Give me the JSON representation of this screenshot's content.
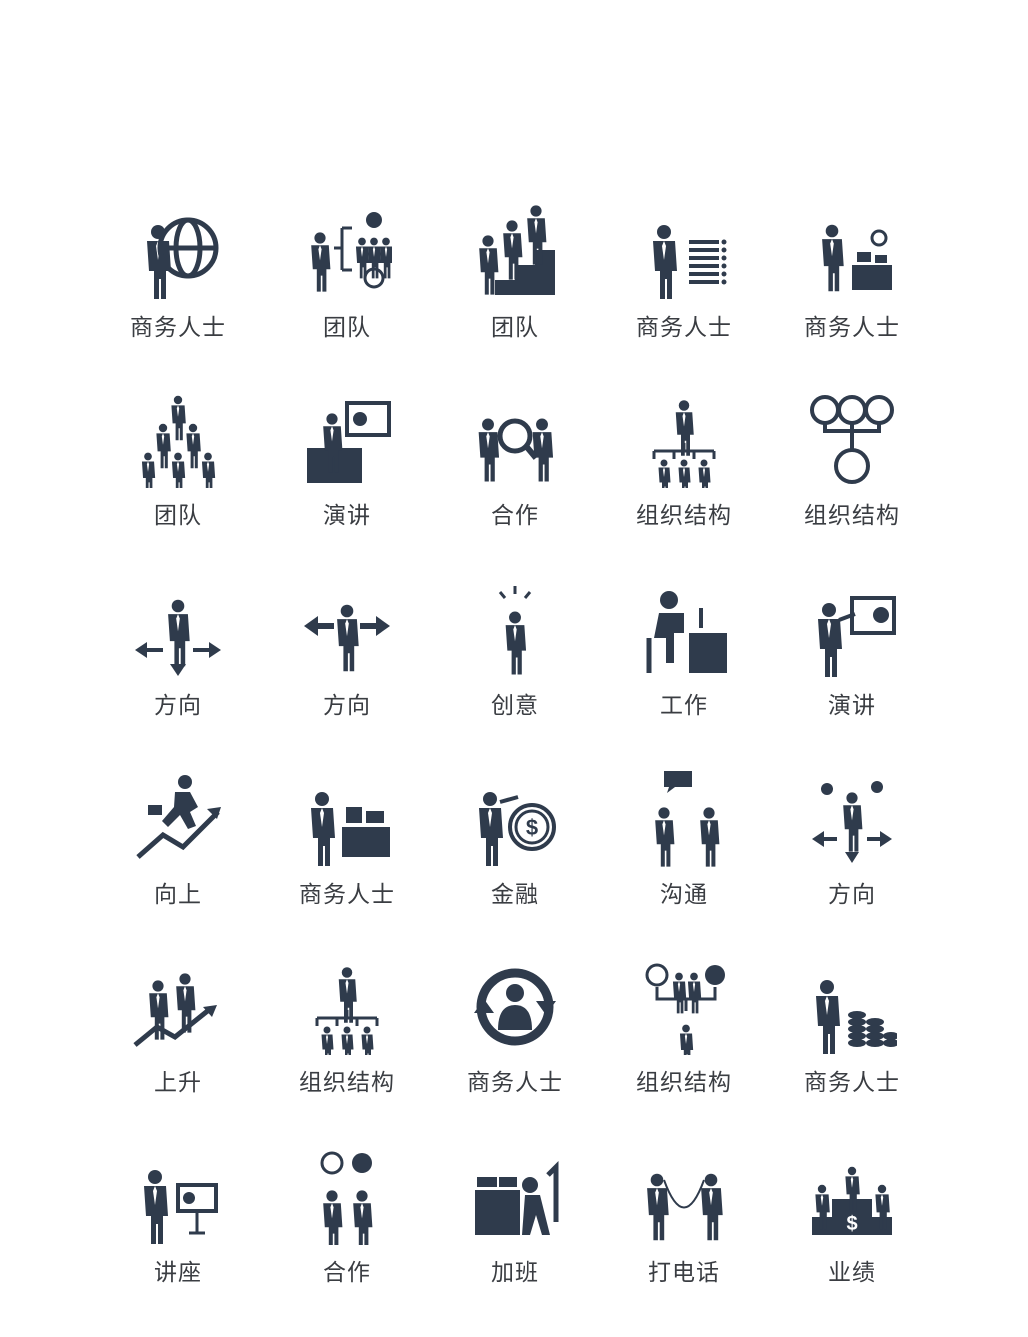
{
  "icon_color": "#2f3b4c",
  "icons": [
    {
      "label": "商务人士",
      "icon": "businessman-globe-icon"
    },
    {
      "label": "团队",
      "icon": "team-tree-gear-icon"
    },
    {
      "label": "团队",
      "icon": "team-stairs-icon"
    },
    {
      "label": "商务人士",
      "icon": "businessman-checklist-icon"
    },
    {
      "label": "商务人士",
      "icon": "businessman-desk-papers-icon"
    },
    {
      "label": "团队",
      "icon": "team-pyramid-icon"
    },
    {
      "label": "演讲",
      "icon": "speech-podium-icon"
    },
    {
      "label": "合作",
      "icon": "cooperation-magnifier-icon"
    },
    {
      "label": "组织结构",
      "icon": "org-structure-icon"
    },
    {
      "label": "组织结构",
      "icon": "org-circles-icon"
    },
    {
      "label": "方向",
      "icon": "direction-three-arrows-icon"
    },
    {
      "label": "方向",
      "icon": "direction-two-arrows-icon"
    },
    {
      "label": "创意",
      "icon": "creative-idea-icon"
    },
    {
      "label": "工作",
      "icon": "working-at-computer-icon"
    },
    {
      "label": "演讲",
      "icon": "presentation-board-icon"
    },
    {
      "label": "向上",
      "icon": "running-up-icon"
    },
    {
      "label": "商务人士",
      "icon": "businessman-desk-icon"
    },
    {
      "label": "金融",
      "icon": "finance-dollar-icon"
    },
    {
      "label": "沟通",
      "icon": "communication-icon"
    },
    {
      "label": "方向",
      "icon": "direction-balance-icon"
    },
    {
      "label": "上升",
      "icon": "rising-team-icon"
    },
    {
      "label": "组织结构",
      "icon": "org-structure-icon"
    },
    {
      "label": "商务人士",
      "icon": "businessman-cycle-icon"
    },
    {
      "label": "组织结构",
      "icon": "org-gears-icon"
    },
    {
      "label": "商务人士",
      "icon": "businessman-coins-icon"
    },
    {
      "label": "讲座",
      "icon": "lecture-board-icon"
    },
    {
      "label": "合作",
      "icon": "cooperation-gears-icon"
    },
    {
      "label": "加班",
      "icon": "overtime-tired-icon"
    },
    {
      "label": "打电话",
      "icon": "phone-call-icon"
    },
    {
      "label": "业绩",
      "icon": "performance-podium-icon"
    }
  ]
}
